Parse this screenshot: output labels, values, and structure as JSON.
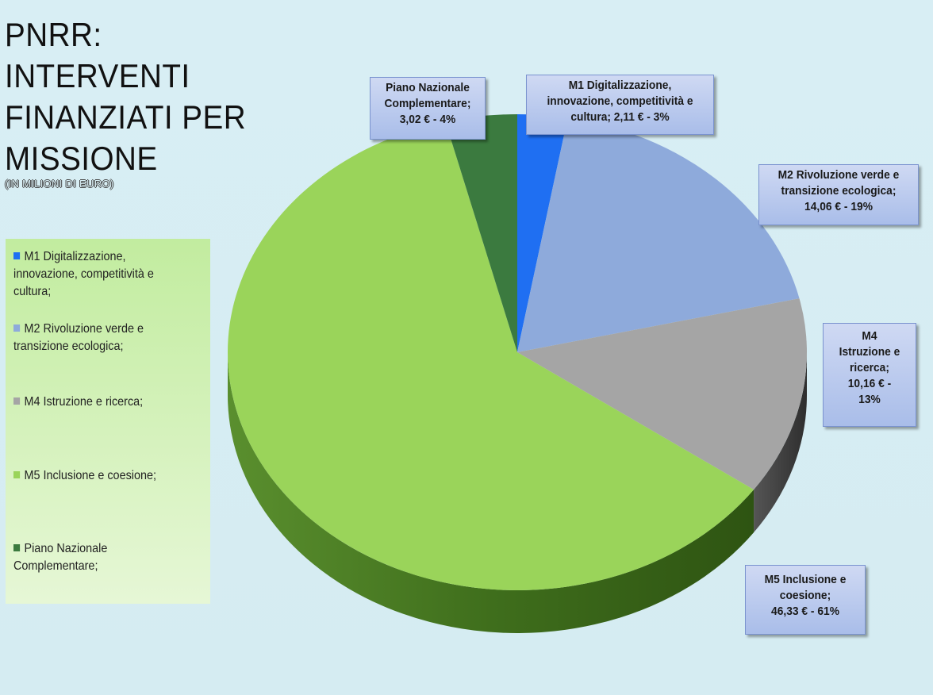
{
  "title_lines": [
    "PNRR:",
    "INTERVENTI",
    "FINANZIATI PER",
    "MISSIONE"
  ],
  "subtitle": "(IN MILIONI DI EURO)",
  "colors": {
    "m1": "#1f6ff2",
    "m2": "#8eaadb",
    "m4": "#a5a5a5",
    "m5": "#9ad45a",
    "pnc": "#3b7a3f",
    "legend_bg": "#c6eea6",
    "page_bg": "#d8eef4"
  },
  "chart_data": {
    "type": "pie",
    "title": "PNRR: INTERVENTI FINANZIATI PER MISSIONE",
    "subtitle": "(IN MILIONI DI EURO)",
    "unit": "€",
    "slices": [
      {
        "name": "M1 Digitalizzazione, innovazione, competitività e cultura",
        "value": 2.11,
        "percent": 3
      },
      {
        "name": "M2 Rivoluzione verde e transizione ecologica",
        "value": 14.06,
        "percent": 19
      },
      {
        "name": "M4 Istruzione e ricerca",
        "value": 10.16,
        "percent": 13
      },
      {
        "name": "M5 Inclusione e coesione",
        "value": 46.33,
        "percent": 61
      },
      {
        "name": "Piano Nazionale Complementare",
        "value": 3.02,
        "percent": 4
      }
    ]
  },
  "legend": [
    {
      "key": "m1",
      "lines": [
        "M1 Digitalizzazione,",
        "innovazione, competitività e",
        "cultura;"
      ]
    },
    {
      "key": "m2",
      "lines": [
        "M2 Rivoluzione verde e",
        "transizione ecologica;"
      ]
    },
    {
      "key": "m4",
      "lines": [
        "M4 Istruzione e ricerca;"
      ]
    },
    {
      "key": "m5",
      "lines": [
        "M5 Inclusione e coesione;"
      ]
    },
    {
      "key": "pnc",
      "lines": [
        "Piano Nazionale",
        "Complementare;"
      ]
    }
  ],
  "callouts": {
    "pnc": [
      "Piano Nazionale",
      "Complementare;",
      "3,02 € - 4%"
    ],
    "m1": [
      "M1 Digitalizzazione,",
      "innovazione, competitività e",
      "cultura; 2,11 € - 3%"
    ],
    "m2": [
      "M2 Rivoluzione verde e",
      "transizione ecologica;",
      "14,06 € - 19%"
    ],
    "m4": [
      "M4",
      "Istruzione e",
      "ricerca;",
      "10,16 € -",
      "13%"
    ],
    "m5": [
      "M5 Inclusione e",
      "coesione;",
      "46,33 € - 61%"
    ]
  }
}
